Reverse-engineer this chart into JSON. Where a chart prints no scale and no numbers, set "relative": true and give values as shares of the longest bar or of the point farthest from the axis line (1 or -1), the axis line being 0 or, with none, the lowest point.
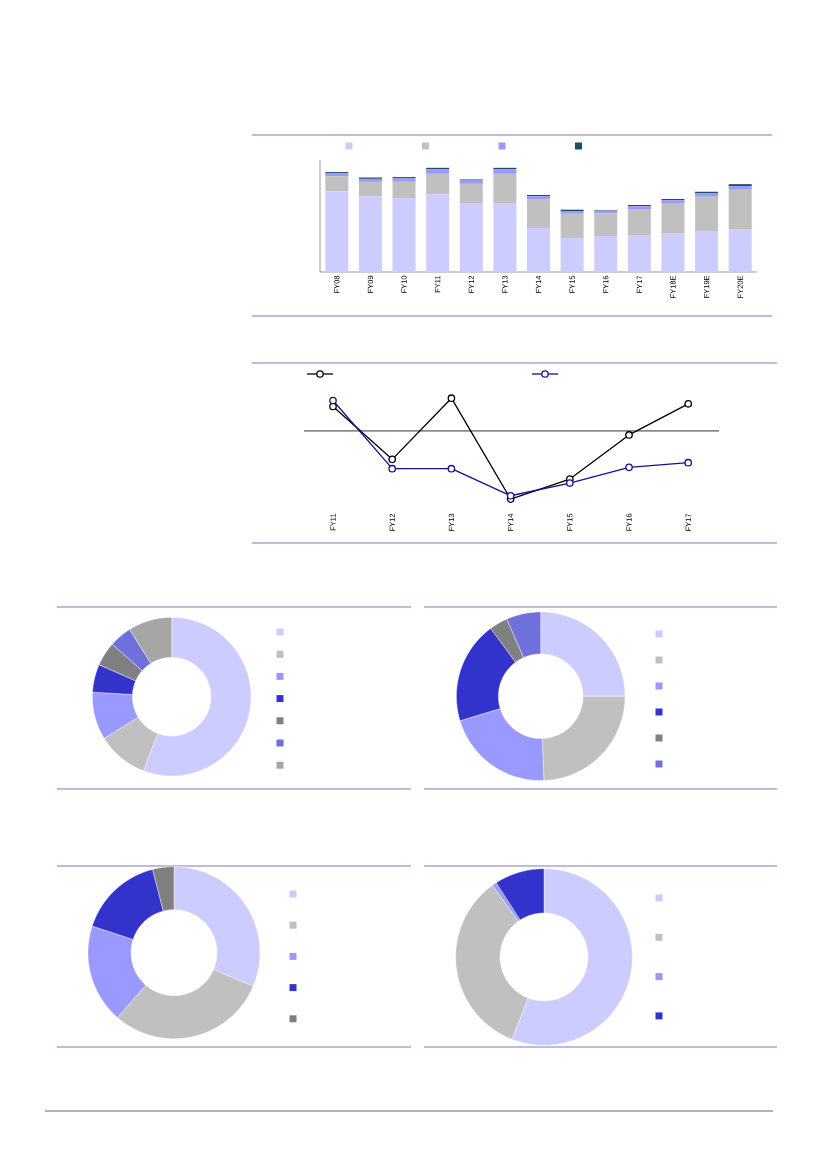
{
  "chart_data": [
    {
      "type": "bar",
      "stacked": true,
      "relative": true,
      "categories": [
        "FY08",
        "FY09",
        "FY10",
        "FY11",
        "FY12",
        "FY13",
        "FY14",
        "FY15",
        "FY16",
        "FY17",
        "FY18E",
        "FY19E",
        "FY20E"
      ],
      "series": [
        {
          "color": "#ccccff",
          "values": [
            0.776,
            0.728,
            0.709,
            0.747,
            0.661,
            0.661,
            0.422,
            0.326,
            0.345,
            0.355,
            0.374,
            0.393,
            0.412
          ]
        },
        {
          "color": "#c0c0c0",
          "values": [
            0.144,
            0.137,
            0.157,
            0.195,
            0.185,
            0.281,
            0.278,
            0.233,
            0.217,
            0.243,
            0.288,
            0.329,
            0.377
          ]
        },
        {
          "color": "#9999ff",
          "values": [
            0.026,
            0.029,
            0.032,
            0.045,
            0.032,
            0.045,
            0.026,
            0.026,
            0.019,
            0.032,
            0.026,
            0.032,
            0.035
          ]
        },
        {
          "color": "#1f4e60",
          "values": [
            0.013,
            0.013,
            0.013,
            0.013,
            0.01,
            0.013,
            0.013,
            0.013,
            0.01,
            0.013,
            0.013,
            0.016,
            0.019
          ]
        }
      ]
    },
    {
      "type": "line",
      "relative": true,
      "marker": "circle",
      "categories": [
        "FY11",
        "FY12",
        "FY13",
        "FY14",
        "FY15",
        "FY16",
        "FY17"
      ],
      "series": [
        {
          "color": "#000000",
          "values": [
            0.358,
            -0.417,
            0.48,
            -1,
            -0.706,
            -0.059,
            0.397
          ]
        },
        {
          "color": "#1a0f8c",
          "values": [
            0.446,
            -0.554,
            -0.554,
            -0.951,
            -0.765,
            -0.534,
            -0.466
          ]
        }
      ]
    },
    {
      "type": "donut",
      "categories": [
        null,
        null,
        null,
        null,
        null,
        null,
        null
      ],
      "values": [
        55.8,
        10.4,
        9.7,
        5.7,
        4.9,
        4.6,
        8.9
      ],
      "colors": [
        "#ccccff",
        "#c0c0c0",
        "#9999ff",
        "#3333cc",
        "#808080",
        "#7070dd",
        "#a6a6a6"
      ]
    },
    {
      "type": "donut",
      "categories": [
        null,
        null,
        null,
        null,
        null,
        null
      ],
      "values": [
        25,
        24.4,
        20.9,
        19.6,
        3.5,
        6.6
      ],
      "colors": [
        "#ccccff",
        "#c0c0c0",
        "#9999ff",
        "#3333cc",
        "#808080",
        "#7070dd"
      ]
    },
    {
      "type": "donut",
      "categories": [
        null,
        null,
        null,
        null,
        null
      ],
      "values": [
        31.4,
        30,
        18.6,
        16,
        4
      ],
      "colors": [
        "#ccccff",
        "#c0c0c0",
        "#9999ff",
        "#3333cc",
        "#808080"
      ]
    },
    {
      "type": "donut",
      "categories": [
        null,
        null,
        null,
        null
      ],
      "values": [
        55.9,
        34.2,
        0.8,
        9.1
      ],
      "colors": [
        "#ccccff",
        "#c0c0c0",
        "#9999ff",
        "#3333cc"
      ]
    }
  ]
}
